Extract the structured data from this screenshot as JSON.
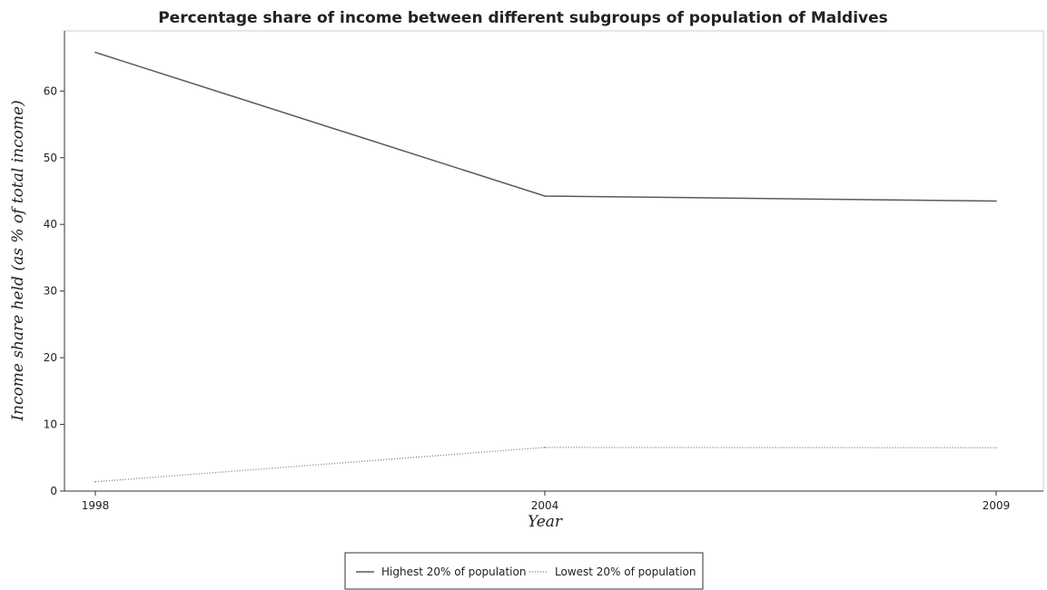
{
  "chart_data": {
    "type": "line",
    "title": "Percentage share of income between different subgroups of population of Maldives",
    "xlabel": "Year",
    "ylabel": "Income share held (as % of total income)",
    "categories": [
      "1998",
      "2004",
      "2009"
    ],
    "series": [
      {
        "name": "Highest 20% of population",
        "values": [
          65.8,
          44.25,
          43.5
        ],
        "color": "#5a5a5a",
        "dash": "solid"
      },
      {
        "name": "Lowest 20% of population",
        "values": [
          1.4,
          6.55,
          6.5
        ],
        "color": "#8a8a8a",
        "dash": "dotted"
      }
    ],
    "yticks": [
      "0",
      "10",
      "20",
      "30",
      "40",
      "50",
      "60"
    ],
    "ylim": [
      0,
      70
    ],
    "grid": false,
    "legend_position": "bottom-center"
  }
}
